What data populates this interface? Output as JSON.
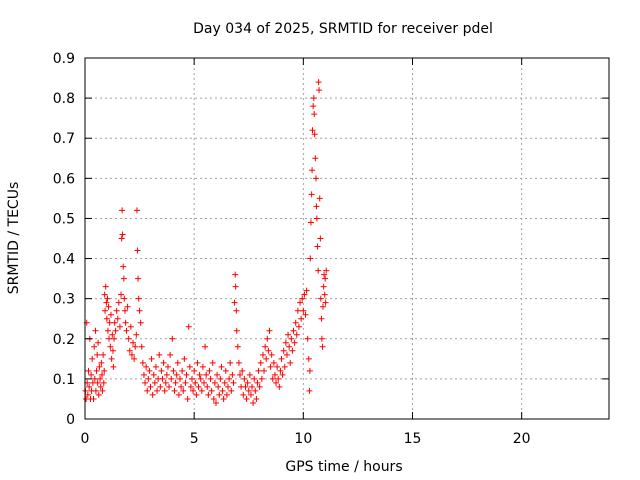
{
  "chart_data": {
    "type": "scatter",
    "title": "Day 034 of 2025, SRMTID for receiver pdel",
    "xlabel": "GPS time / hours",
    "ylabel": "SRMTID / TECUs",
    "xlim": [
      0,
      24
    ],
    "ylim": [
      0,
      0.9
    ],
    "xticks": [
      0,
      5,
      10,
      15,
      20
    ],
    "xtick_labels": [
      "0",
      "5",
      "10",
      "15",
      "20"
    ],
    "yticks": [
      0,
      0.1,
      0.2,
      0.3,
      0.4,
      0.5,
      0.6,
      0.7,
      0.8,
      0.9
    ],
    "ytick_labels": [
      "0",
      "0.1",
      "0.2",
      "0.3",
      "0.4",
      "0.5",
      "0.6",
      "0.7",
      "0.8",
      "0.9"
    ],
    "grid": true,
    "marker": "+",
    "color": "#ff0000",
    "series": [
      {
        "name": "SRMTID",
        "points": [
          [
            0.02,
            0.07
          ],
          [
            0.05,
            0.05
          ],
          [
            0.08,
            0.24
          ],
          [
            0.1,
            0.09
          ],
          [
            0.13,
            0.06
          ],
          [
            0.16,
            0.12
          ],
          [
            0.19,
            0.08
          ],
          [
            0.22,
            0.2
          ],
          [
            0.25,
            0.05
          ],
          [
            0.28,
            0.11
          ],
          [
            0.3,
            0.07
          ],
          [
            0.33,
            0.15
          ],
          [
            0.36,
            0.09
          ],
          [
            0.39,
            0.05
          ],
          [
            0.42,
            0.18
          ],
          [
            0.45,
            0.1
          ],
          [
            0.48,
            0.22
          ],
          [
            0.5,
            0.07
          ],
          [
            0.53,
            0.12
          ],
          [
            0.56,
            0.16
          ],
          [
            0.58,
            0.09
          ],
          [
            0.6,
            0.19
          ],
          [
            0.63,
            0.06
          ],
          [
            0.66,
            0.13
          ],
          [
            0.69,
            0.1
          ],
          [
            0.72,
            0.08
          ],
          [
            0.75,
            0.14
          ],
          [
            0.78,
            0.11
          ],
          [
            0.8,
            0.07
          ],
          [
            0.83,
            0.16
          ],
          [
            0.86,
            0.09
          ],
          [
            0.88,
            0.12
          ],
          [
            0.9,
            0.31
          ],
          [
            0.92,
            0.27
          ],
          [
            0.95,
            0.33
          ],
          [
            0.98,
            0.29
          ],
          [
            1.0,
            0.25
          ],
          [
            1.03,
            0.3
          ],
          [
            1.05,
            0.22
          ],
          [
            1.08,
            0.28
          ],
          [
            1.1,
            0.2
          ],
          [
            1.13,
            0.24
          ],
          [
            1.16,
            0.18
          ],
          [
            1.19,
            0.26
          ],
          [
            1.22,
            0.15
          ],
          [
            1.25,
            0.21
          ],
          [
            1.28,
            0.17
          ],
          [
            1.3,
            0.13
          ],
          [
            1.33,
            0.2
          ],
          [
            1.36,
            0.24
          ],
          [
            1.4,
            0.22
          ],
          [
            1.45,
            0.27
          ],
          [
            1.5,
            0.25
          ],
          [
            1.55,
            0.29
          ],
          [
            1.6,
            0.23
          ],
          [
            1.65,
            0.31
          ],
          [
            1.68,
            0.45
          ],
          [
            1.7,
            0.52
          ],
          [
            1.72,
            0.46
          ],
          [
            1.75,
            0.38
          ],
          [
            1.78,
            0.35
          ],
          [
            1.8,
            0.3
          ],
          [
            1.83,
            0.27
          ],
          [
            1.86,
            0.24
          ],
          [
            1.9,
            0.22
          ],
          [
            1.95,
            0.28
          ],
          [
            2.0,
            0.2
          ],
          [
            2.05,
            0.17
          ],
          [
            2.1,
            0.23
          ],
          [
            2.15,
            0.16
          ],
          [
            2.2,
            0.19
          ],
          [
            2.25,
            0.15
          ],
          [
            2.3,
            0.18
          ],
          [
            2.35,
            0.21
          ],
          [
            2.38,
            0.52
          ],
          [
            2.4,
            0.42
          ],
          [
            2.43,
            0.35
          ],
          [
            2.46,
            0.3
          ],
          [
            2.5,
            0.27
          ],
          [
            2.55,
            0.24
          ],
          [
            2.6,
            0.18
          ],
          [
            2.65,
            0.14
          ],
          [
            2.7,
            0.11
          ],
          [
            2.75,
            0.09
          ],
          [
            2.8,
            0.13
          ],
          [
            2.85,
            0.07
          ],
          [
            2.9,
            0.1
          ],
          [
            2.95,
            0.12
          ],
          [
            3.0,
            0.08
          ],
          [
            3.05,
            0.15
          ],
          [
            3.1,
            0.06
          ],
          [
            3.15,
            0.11
          ],
          [
            3.2,
            0.09
          ],
          [
            3.25,
            0.13
          ],
          [
            3.3,
            0.07
          ],
          [
            3.35,
            0.1
          ],
          [
            3.4,
            0.16
          ],
          [
            3.45,
            0.08
          ],
          [
            3.5,
            0.12
          ],
          [
            3.55,
            0.1
          ],
          [
            3.6,
            0.14
          ],
          [
            3.65,
            0.07
          ],
          [
            3.7,
            0.09
          ],
          [
            3.75,
            0.11
          ],
          [
            3.8,
            0.13
          ],
          [
            3.85,
            0.08
          ],
          [
            3.9,
            0.16
          ],
          [
            3.95,
            0.1
          ],
          [
            4.0,
            0.2
          ],
          [
            4.05,
            0.12
          ],
          [
            4.1,
            0.07
          ],
          [
            4.15,
            0.09
          ],
          [
            4.2,
            0.11
          ],
          [
            4.25,
            0.14
          ],
          [
            4.3,
            0.06
          ],
          [
            4.35,
            0.1
          ],
          [
            4.4,
            0.08
          ],
          [
            4.45,
            0.12
          ],
          [
            4.5,
            0.07
          ],
          [
            4.55,
            0.15
          ],
          [
            4.6,
            0.09
          ],
          [
            4.65,
            0.11
          ],
          [
            4.7,
            0.05
          ],
          [
            4.75,
            0.23
          ],
          [
            4.8,
            0.13
          ],
          [
            4.85,
            0.08
          ],
          [
            4.9,
            0.1
          ],
          [
            4.95,
            0.07
          ],
          [
            5.0,
            0.12
          ],
          [
            5.05,
            0.09
          ],
          [
            5.1,
            0.06
          ],
          [
            5.15,
            0.14
          ],
          [
            5.2,
            0.08
          ],
          [
            5.25,
            0.11
          ],
          [
            5.3,
            0.1
          ],
          [
            5.35,
            0.07
          ],
          [
            5.4,
            0.13
          ],
          [
            5.45,
            0.09
          ],
          [
            5.5,
            0.18
          ],
          [
            5.55,
            0.11
          ],
          [
            5.6,
            0.08
          ],
          [
            5.65,
            0.06
          ],
          [
            5.7,
            0.12
          ],
          [
            5.75,
            0.1
          ],
          [
            5.8,
            0.07
          ],
          [
            5.85,
            0.14
          ],
          [
            5.9,
            0.05
          ],
          [
            5.95,
            0.09
          ],
          [
            6.0,
            0.04
          ],
          [
            6.05,
            0.11
          ],
          [
            6.1,
            0.08
          ],
          [
            6.15,
            0.06
          ],
          [
            6.2,
            0.1
          ],
          [
            6.25,
            0.13
          ],
          [
            6.3,
            0.07
          ],
          [
            6.35,
            0.05
          ],
          [
            6.4,
            0.09
          ],
          [
            6.45,
            0.12
          ],
          [
            6.5,
            0.06
          ],
          [
            6.55,
            0.08
          ],
          [
            6.6,
            0.1
          ],
          [
            6.65,
            0.14
          ],
          [
            6.7,
            0.07
          ],
          [
            6.75,
            0.11
          ],
          [
            6.8,
            0.09
          ],
          [
            6.85,
            0.29
          ],
          [
            6.88,
            0.36
          ],
          [
            6.9,
            0.33
          ],
          [
            6.93,
            0.27
          ],
          [
            6.95,
            0.22
          ],
          [
            7.0,
            0.18
          ],
          [
            7.05,
            0.14
          ],
          [
            7.1,
            0.11
          ],
          [
            7.15,
            0.08
          ],
          [
            7.2,
            0.12
          ],
          [
            7.25,
            0.06
          ],
          [
            7.3,
            0.1
          ],
          [
            7.35,
            0.08
          ],
          [
            7.4,
            0.05
          ],
          [
            7.45,
            0.09
          ],
          [
            7.5,
            0.07
          ],
          [
            7.55,
            0.11
          ],
          [
            7.6,
            0.06
          ],
          [
            7.65,
            0.08
          ],
          [
            7.7,
            0.04
          ],
          [
            7.75,
            0.1
          ],
          [
            7.8,
            0.07
          ],
          [
            7.85,
            0.05
          ],
          [
            7.9,
            0.09
          ],
          [
            7.95,
            0.12
          ],
          [
            8.0,
            0.08
          ],
          [
            8.05,
            0.14
          ],
          [
            8.1,
            0.1
          ],
          [
            8.15,
            0.16
          ],
          [
            8.2,
            0.12
          ],
          [
            8.25,
            0.18
          ],
          [
            8.3,
            0.15
          ],
          [
            8.35,
            0.2
          ],
          [
            8.4,
            0.17
          ],
          [
            8.45,
            0.22
          ],
          [
            8.5,
            0.13
          ],
          [
            8.55,
            0.16
          ],
          [
            8.6,
            0.1
          ],
          [
            8.65,
            0.14
          ],
          [
            8.7,
            0.11
          ],
          [
            8.75,
            0.09
          ],
          [
            8.8,
            0.13
          ],
          [
            8.85,
            0.1
          ],
          [
            8.9,
            0.08
          ],
          [
            8.95,
            0.12
          ],
          [
            9.0,
            0.15
          ],
          [
            9.05,
            0.11
          ],
          [
            9.1,
            0.17
          ],
          [
            9.15,
            0.13
          ],
          [
            9.2,
            0.19
          ],
          [
            9.25,
            0.16
          ],
          [
            9.3,
            0.21
          ],
          [
            9.35,
            0.18
          ],
          [
            9.4,
            0.14
          ],
          [
            9.45,
            0.2
          ],
          [
            9.5,
            0.17
          ],
          [
            9.55,
            0.22
          ],
          [
            9.6,
            0.19
          ],
          [
            9.65,
            0.24
          ],
          [
            9.7,
            0.21
          ],
          [
            9.75,
            0.27
          ],
          [
            9.8,
            0.23
          ],
          [
            9.85,
            0.29
          ],
          [
            9.9,
            0.25
          ],
          [
            9.95,
            0.3
          ],
          [
            10.0,
            0.27
          ],
          [
            10.05,
            0.31
          ],
          [
            10.1,
            0.26
          ],
          [
            10.15,
            0.32
          ],
          [
            10.2,
            0.2
          ],
          [
            10.25,
            0.15
          ],
          [
            10.28,
            0.07
          ],
          [
            10.3,
            0.12
          ],
          [
            10.32,
            0.4
          ],
          [
            10.35,
            0.49
          ],
          [
            10.38,
            0.56
          ],
          [
            10.4,
            0.62
          ],
          [
            10.42,
            0.72
          ],
          [
            10.45,
            0.78
          ],
          [
            10.48,
            0.8
          ],
          [
            10.5,
            0.76
          ],
          [
            10.52,
            0.71
          ],
          [
            10.55,
            0.65
          ],
          [
            10.58,
            0.6
          ],
          [
            10.6,
            0.53
          ],
          [
            10.62,
            0.5
          ],
          [
            10.65,
            0.43
          ],
          [
            10.68,
            0.37
          ],
          [
            10.7,
            0.84
          ],
          [
            10.72,
            0.82
          ],
          [
            10.75,
            0.55
          ],
          [
            10.78,
            0.45
          ],
          [
            10.8,
            0.3
          ],
          [
            10.83,
            0.25
          ],
          [
            10.85,
            0.2
          ],
          [
            10.88,
            0.18
          ],
          [
            10.9,
            0.28
          ],
          [
            10.93,
            0.33
          ],
          [
            10.95,
            0.36
          ],
          [
            10.98,
            0.31
          ],
          [
            11.0,
            0.35
          ],
          [
            11.02,
            0.29
          ],
          [
            11.05,
            0.37
          ]
        ]
      }
    ]
  }
}
